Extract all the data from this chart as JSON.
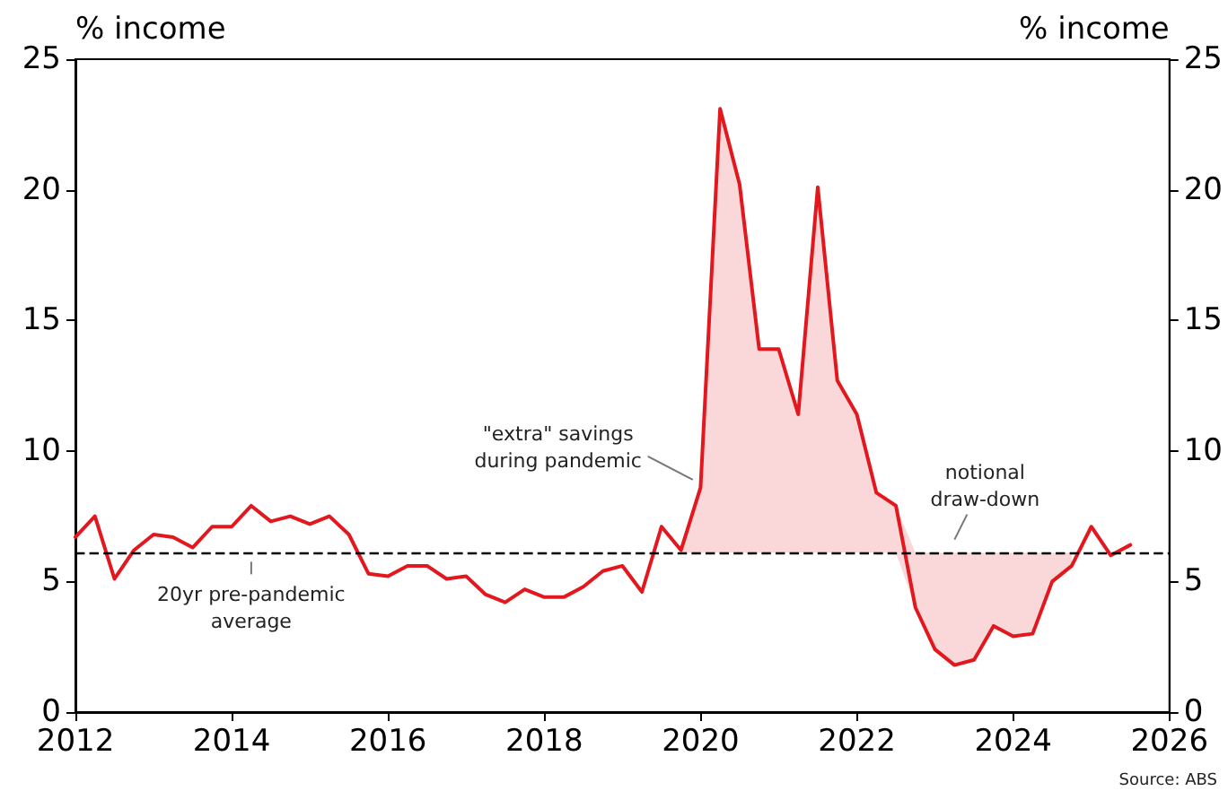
{
  "chart_data": {
    "type": "line",
    "ylabel": "% income",
    "y2label": "% income",
    "x": [
      2012,
      2012.25,
      2012.5,
      2012.75,
      2013,
      2013.25,
      2013.5,
      2013.75,
      2014,
      2014.25,
      2014.5,
      2014.75,
      2015,
      2015.25,
      2015.5,
      2015.75,
      2016,
      2016.25,
      2016.5,
      2016.75,
      2017,
      2017.25,
      2017.5,
      2017.75,
      2018,
      2018.25,
      2018.5,
      2018.75,
      2019,
      2019.25,
      2019.5,
      2019.75,
      2020,
      2020.25,
      2020.5,
      2020.75,
      2021,
      2021.25,
      2021.5,
      2021.75,
      2022,
      2022.25,
      2022.5,
      2022.75,
      2023,
      2023.25,
      2023.5,
      2023.75,
      2024,
      2024.25,
      2024.5,
      2024.75,
      2025,
      2025.25,
      2025.5
    ],
    "series": [
      {
        "color": "#e3171e",
        "values": [
          6.7,
          7.5,
          5.1,
          6.2,
          6.8,
          6.7,
          6.3,
          7.1,
          7.1,
          7.9,
          7.3,
          7.5,
          7.2,
          7.5,
          6.8,
          5.3,
          5.2,
          5.6,
          5.6,
          5.1,
          5.2,
          4.5,
          4.2,
          4.7,
          4.4,
          4.4,
          4.8,
          5.4,
          5.6,
          4.6,
          7.1,
          6.2,
          8.6,
          23.1,
          20.2,
          13.9,
          13.9,
          11.4,
          20.1,
          12.7,
          11.4,
          8.4,
          7.9,
          4.0,
          2.4,
          1.8,
          2.0,
          3.3,
          2.9,
          3.0,
          5.0,
          5.6,
          7.1,
          6.0,
          6.4
        ],
        "lower": [
          null,
          null,
          null,
          null,
          null,
          null,
          null,
          null,
          null,
          null,
          null,
          null,
          null,
          null,
          null,
          null,
          null,
          null,
          null,
          null,
          null,
          null,
          null,
          null,
          null,
          null,
          null,
          null,
          null,
          null,
          null,
          6.1,
          6.1,
          6.1,
          6.1,
          6.1,
          6.1,
          6.1,
          6.1,
          6.1,
          6.1,
          6.1,
          6.1,
          4.0,
          2.4,
          1.8,
          2.0,
          3.3,
          2.9,
          3.0,
          5.0,
          5.6,
          null,
          null,
          null
        ],
        "upper": [
          null,
          null,
          null,
          null,
          null,
          null,
          null,
          null,
          null,
          null,
          null,
          null,
          null,
          null,
          null,
          null,
          null,
          null,
          null,
          null,
          null,
          null,
          null,
          null,
          null,
          null,
          null,
          null,
          null,
          null,
          null,
          6.2,
          8.6,
          23.1,
          20.2,
          13.9,
          13.9,
          11.4,
          20.1,
          12.7,
          11.4,
          8.4,
          7.9,
          6.1,
          6.1,
          6.1,
          6.1,
          6.1,
          6.1,
          6.1,
          6.1,
          6.1,
          null,
          null,
          null
        ]
      }
    ],
    "xlim": [
      2012,
      2026
    ],
    "xticks": [
      2012,
      2014,
      2016,
      2018,
      2020,
      2022,
      2024,
      2026
    ],
    "ylim": [
      0,
      25
    ],
    "yticks": [
      0,
      5,
      10,
      15,
      20,
      25
    ],
    "y2lim": [
      0,
      25
    ],
    "y2ticks": [
      0,
      5,
      10,
      15,
      20,
      25
    ],
    "grid": false,
    "marker": "none",
    "line_style": "solid",
    "ref_lines": [
      {
        "axis": "y",
        "value": 6.1,
        "color": "#000000",
        "line_style": "dashed"
      }
    ],
    "annotations": [
      {
        "text": "\"extra\" savings\nduring pandemic",
        "x": 2019.9,
        "y": 8.9
      },
      {
        "text": "notional\ndraw-down",
        "x": 2023.25,
        "y": 6.4
      },
      {
        "text": "20yr pre-pandemic\naverage",
        "x": 2014.25,
        "y": 6.1
      },
      "Source: ABS"
    ]
  }
}
